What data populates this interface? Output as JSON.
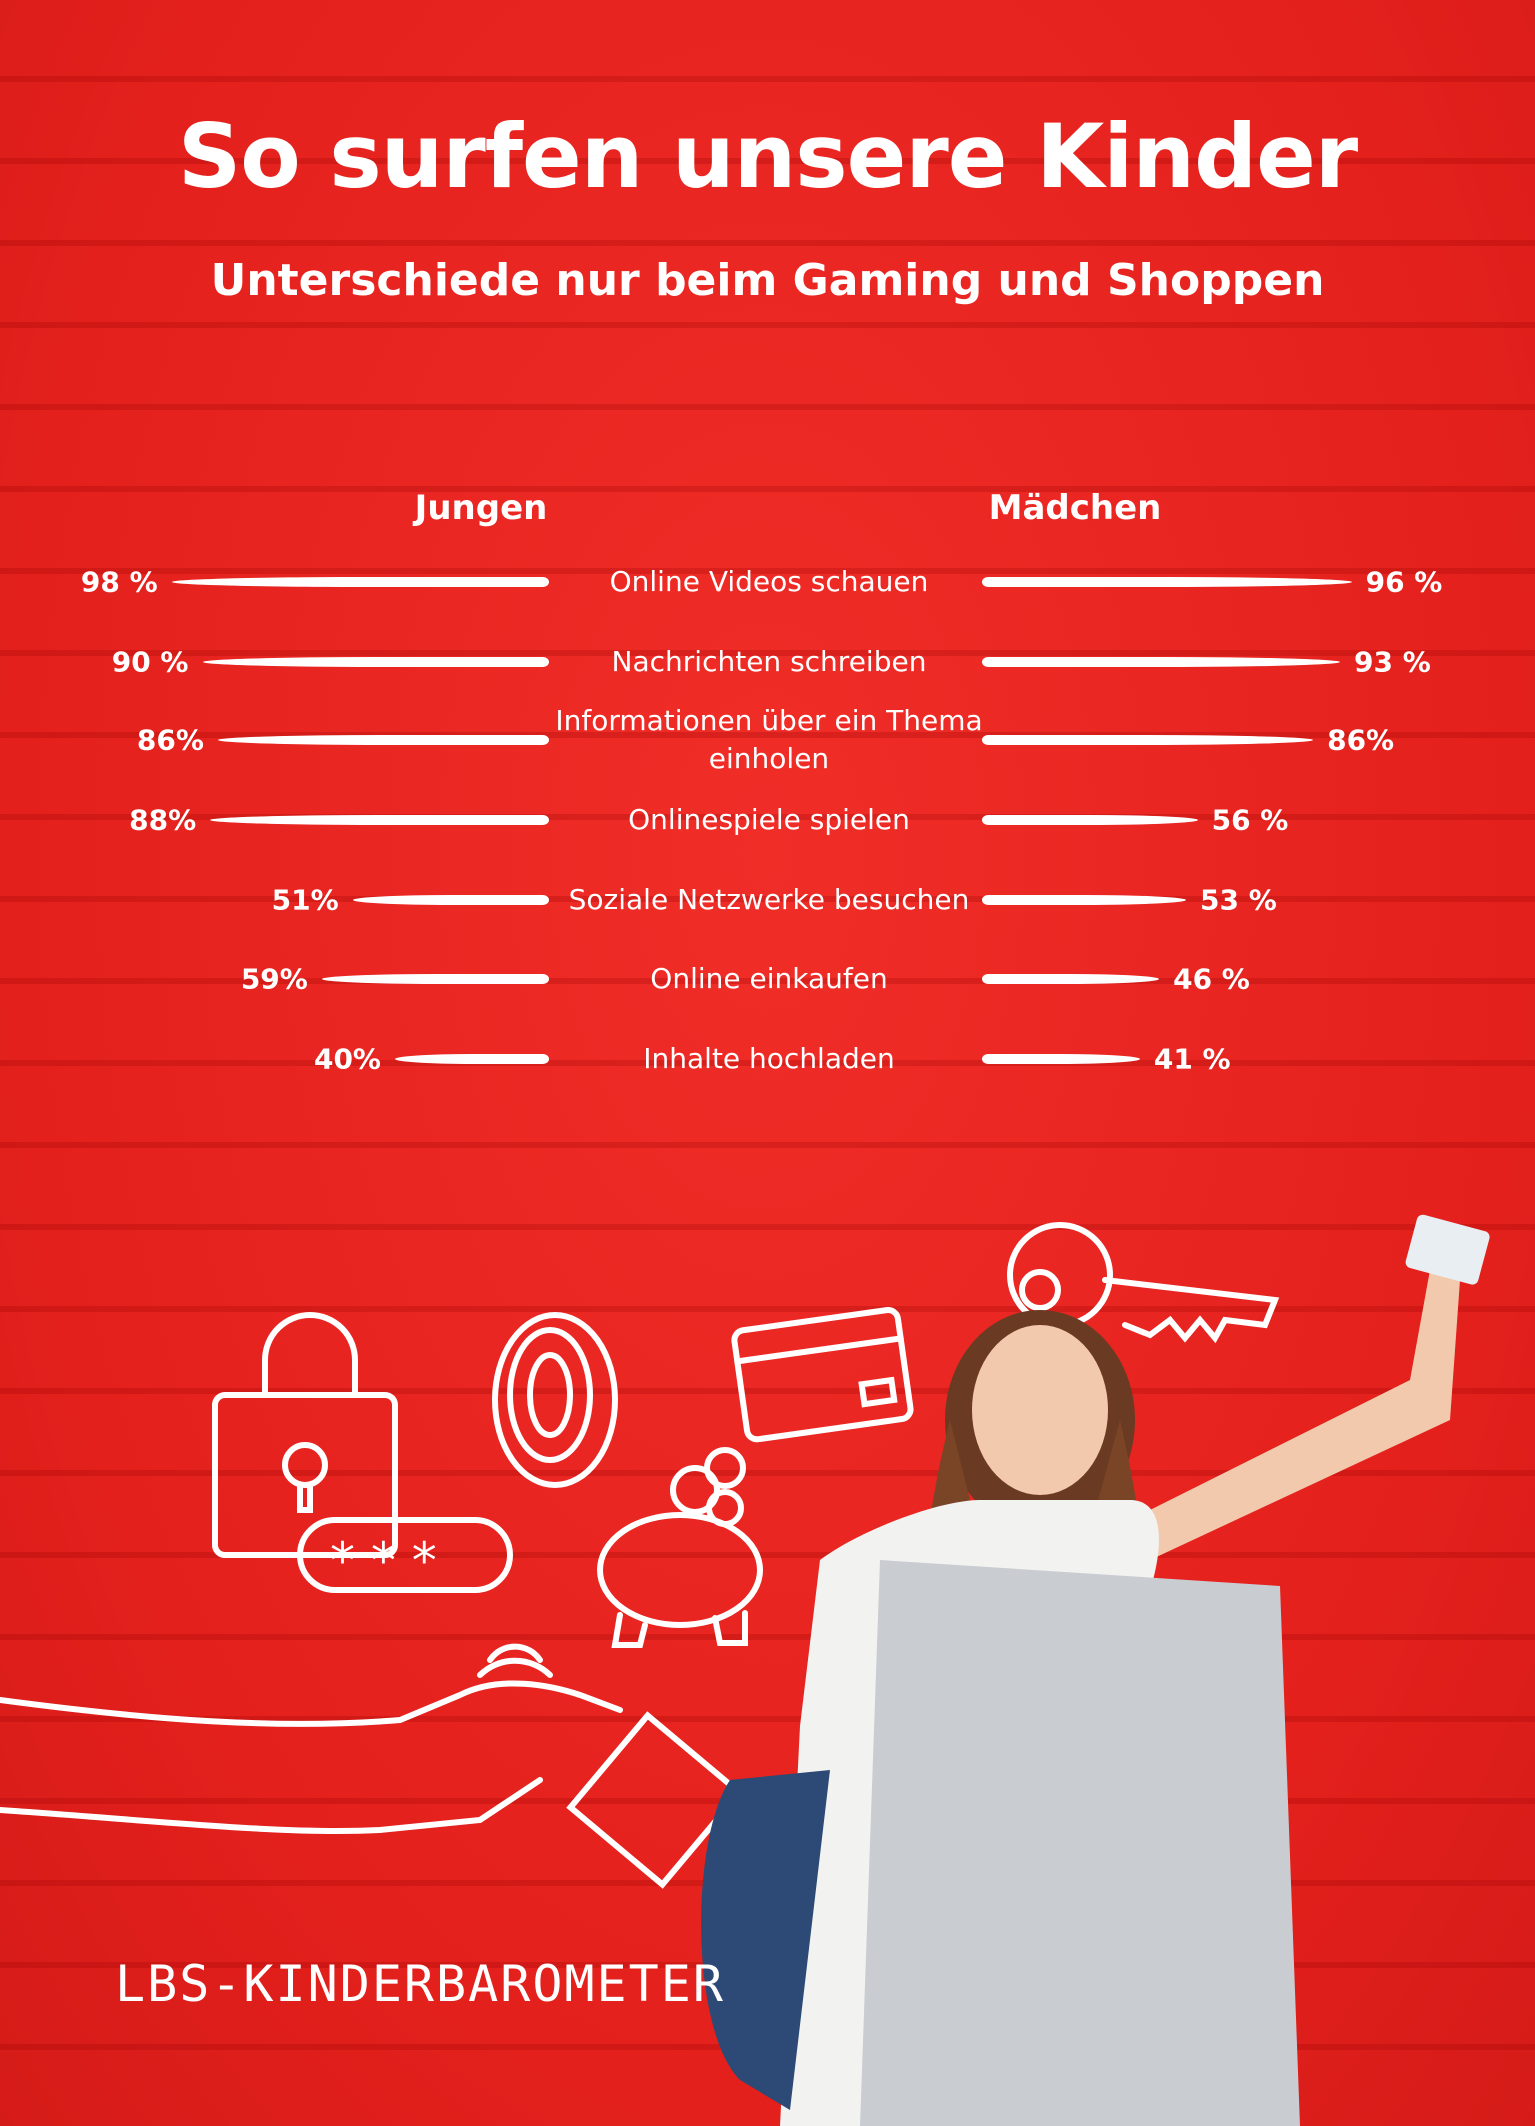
{
  "title": "So surfen unsere Kinder",
  "subtitle": "Unterschiede nur beim Gaming und Shoppen",
  "logo": "LBS-KINDERBAROMETER",
  "chart_data": {
    "type": "bar",
    "orientation": "horizontal-butterfly",
    "categories": [
      "Online Videos schauen",
      "Nachrichten schreiben",
      "Informationen über ein Thema einholen",
      "Onlinespiele spielen",
      "Soziale Netzwerke besuchen",
      "Online einkaufen",
      "Inhalte hochladen"
    ],
    "series": [
      {
        "name": "Jungen",
        "values": [
          98,
          90,
          86,
          88,
          51,
          59,
          40
        ],
        "labels": [
          "98 %",
          "90 %",
          "86%",
          "88%",
          "51%",
          "59%",
          "40%"
        ]
      },
      {
        "name": "Mädchen",
        "values": [
          96,
          93,
          86,
          56,
          53,
          46,
          41
        ],
        "labels": [
          "96 %",
          "93 %",
          "86%",
          "56 %",
          "53 %",
          "46 %",
          "41 %"
        ]
      }
    ],
    "unit": "%",
    "bar_color": "#ffffff",
    "background_color": "#e8231f"
  }
}
